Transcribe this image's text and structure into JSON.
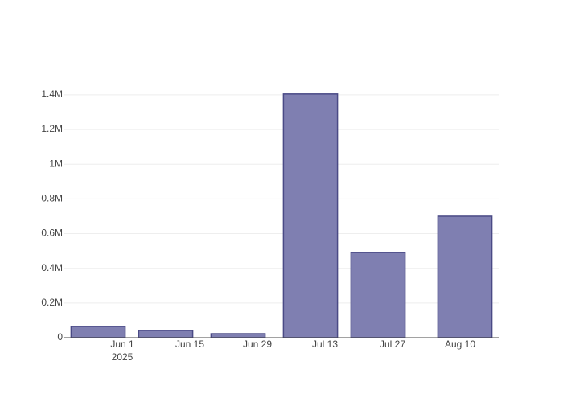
{
  "chart_data": {
    "type": "bar",
    "x": [
      "2025-05-27",
      "2025-06-10",
      "2025-06-25",
      "2025-07-10",
      "2025-07-24",
      "2025-08-11"
    ],
    "values": [
      65000,
      42000,
      23000,
      1405000,
      491000,
      700000
    ],
    "color": "#7f7fb1",
    "edge_color": "#4a4a86",
    "xlim": [
      "2025-05-20",
      "2025-08-18"
    ],
    "xticks": [
      {
        "value": "2025-06-01",
        "label": "Jun 1"
      },
      {
        "value": "2025-06-15",
        "label": "Jun 15"
      },
      {
        "value": "2025-06-29",
        "label": "Jun 29"
      },
      {
        "value": "2025-07-13",
        "label": "Jul 13"
      },
      {
        "value": "2025-07-27",
        "label": "Jul 27"
      },
      {
        "value": "2025-08-10",
        "label": "Aug 10"
      }
    ],
    "x_year_label": "2025",
    "ylim": [
      0,
      1483000
    ],
    "yticks": [
      0,
      {
        "value": 200000,
        "label": "0.2M"
      },
      {
        "value": 400000,
        "label": "0.4M"
      },
      {
        "value": 600000,
        "label": "0.6M"
      },
      {
        "value": 800000,
        "label": "0.8M"
      },
      {
        "value": 1000000,
        "label": "1M"
      },
      {
        "value": 1200000,
        "label": "1.2M"
      },
      {
        "value": 1400000,
        "label": "1.4M"
      }
    ],
    "grid": true
  }
}
